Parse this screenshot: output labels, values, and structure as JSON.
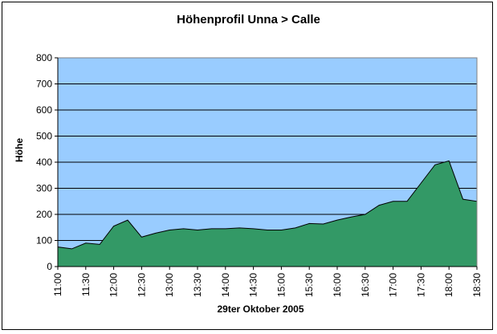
{
  "chart_data": {
    "type": "area",
    "title": "Höhenprofil Unna > Calle",
    "xlabel": "29ter Oktober 2005",
    "ylabel": "Höhe",
    "ylim": [
      0,
      800
    ],
    "yticks": [
      0,
      100,
      200,
      300,
      400,
      500,
      600,
      700,
      800
    ],
    "xlim": [
      "11:00",
      "18:30"
    ],
    "xticks": [
      "11:00",
      "11:30",
      "12:00",
      "12:30",
      "13:00",
      "13:30",
      "14:00",
      "14:30",
      "15:00",
      "15:30",
      "16:00",
      "16:30",
      "17:00",
      "17:30",
      "18:00",
      "18:30"
    ],
    "grid": true,
    "legend": "none",
    "colors": {
      "plot_background": "#99ccff",
      "area_fill": "#339966",
      "area_stroke": "#000000",
      "gridlines": "#000000"
    },
    "x": [
      "11:00",
      "11:15",
      "11:30",
      "11:45",
      "12:00",
      "12:15",
      "12:30",
      "12:45",
      "13:00",
      "13:15",
      "13:30",
      "13:45",
      "14:00",
      "14:15",
      "14:30",
      "14:45",
      "15:00",
      "15:15",
      "15:30",
      "15:45",
      "16:00",
      "16:15",
      "16:30",
      "16:45",
      "17:00",
      "17:15",
      "17:30",
      "17:45",
      "18:00",
      "18:15",
      "18:30"
    ],
    "series": [
      {
        "values": [
          75,
          68,
          90,
          85,
          155,
          178,
          113,
          128,
          140,
          145,
          140,
          145,
          145,
          148,
          145,
          140,
          140,
          148,
          165,
          163,
          178,
          190,
          200,
          235,
          250,
          250,
          320,
          390,
          405,
          258,
          250
        ]
      }
    ]
  }
}
